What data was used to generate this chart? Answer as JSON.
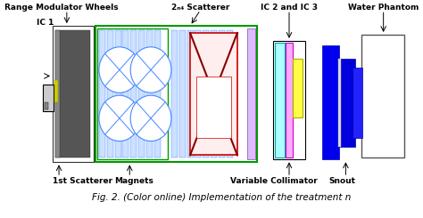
{
  "title": "Fig. 2. (Color online) Implementation of the treatment n",
  "labels": {
    "range_modulator_wheels": "Range Modulator Wheels",
    "ic1": "IC 1",
    "second_scatterer": "2ₙ₄ Scatterer",
    "ic2_ic3": "IC 2 and IC 3",
    "water_phantom": "Water Phantom",
    "first_scatterer": "1st Scatterer",
    "magnets": "Magnets",
    "variable_collimator": "Variable Collimator",
    "snout": "Snout"
  },
  "bg_color": "#ffffff",
  "label_fontsize": 6.5,
  "caption_fontsize": 7.5
}
